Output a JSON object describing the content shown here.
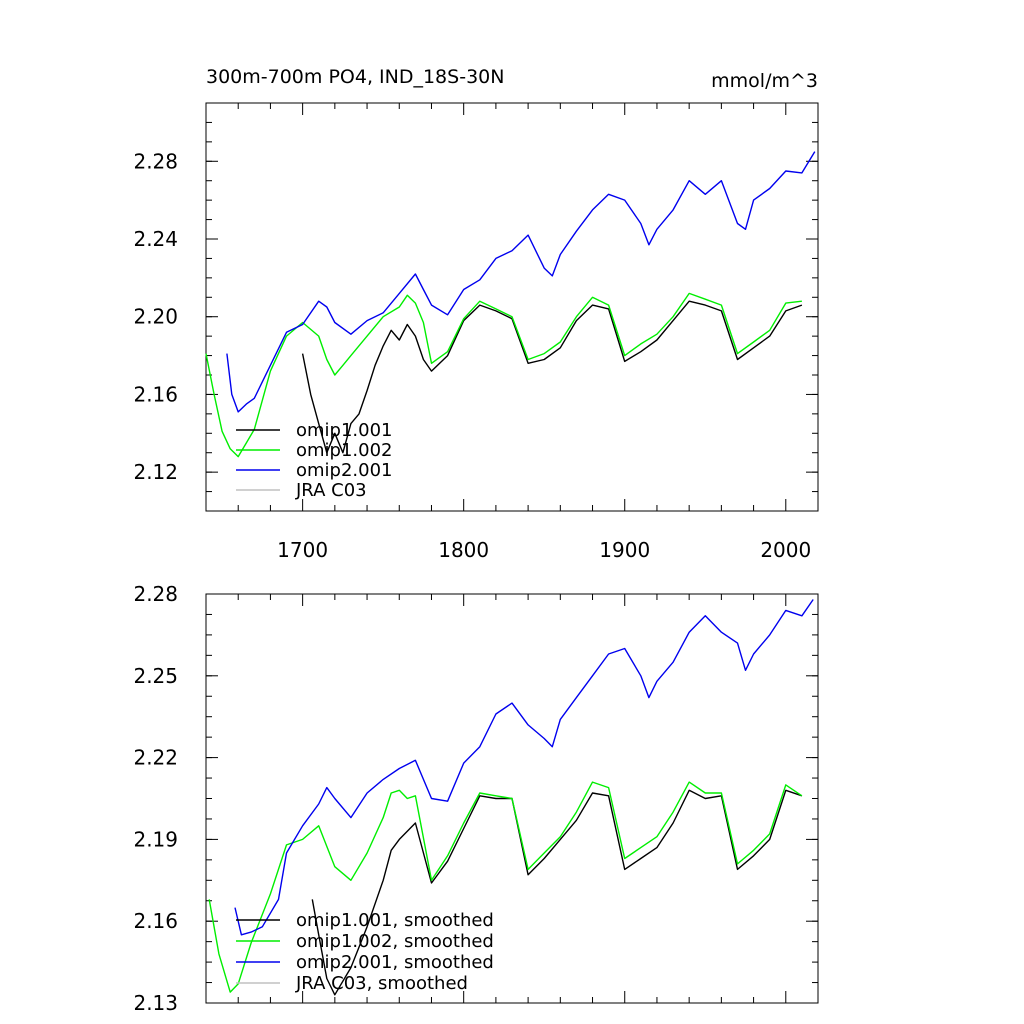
{
  "chart_data": [
    {
      "type": "line",
      "title": "300m-700m PO4, IND_18S-30N",
      "units": "mmol/m^3",
      "xlim": [
        1640,
        2020
      ],
      "ylim": [
        2.1,
        2.31
      ],
      "xticks": [
        1700,
        1800,
        1900,
        2000
      ],
      "xtick_labels": [
        "1700",
        "1800",
        "1900",
        "2000"
      ],
      "yticks": [
        2.12,
        2.16,
        2.2,
        2.24,
        2.28
      ],
      "ytick_labels": [
        "2.12",
        "2.16",
        "2.20",
        "2.24",
        "2.28"
      ],
      "legend_position": "bottom-left",
      "series": [
        {
          "name": "omip1.001",
          "color": "#000000",
          "x": [
            1700,
            1705,
            1710,
            1715,
            1720,
            1725,
            1730,
            1735,
            1740,
            1745,
            1750,
            1755,
            1760,
            1765,
            1770,
            1775,
            1780,
            1790,
            1800,
            1810,
            1820,
            1830,
            1840,
            1850,
            1860,
            1870,
            1880,
            1890,
            1900,
            1910,
            1920,
            1930,
            1940,
            1950,
            1960,
            1970,
            1980,
            1990,
            2000,
            2010
          ],
          "values": [
            2.181,
            2.16,
            2.145,
            2.13,
            2.14,
            2.13,
            2.145,
            2.15,
            2.162,
            2.175,
            2.185,
            2.193,
            2.188,
            2.196,
            2.19,
            2.178,
            2.172,
            2.18,
            2.198,
            2.206,
            2.203,
            2.199,
            2.176,
            2.178,
            2.184,
            2.198,
            2.206,
            2.204,
            2.177,
            2.182,
            2.188,
            2.198,
            2.208,
            2.206,
            2.203,
            2.178,
            2.184,
            2.19,
            2.203,
            2.206
          ]
        },
        {
          "name": "omip1.002",
          "color": "#00ee00",
          "x": [
            1640,
            1645,
            1650,
            1655,
            1660,
            1665,
            1670,
            1680,
            1690,
            1700,
            1710,
            1715,
            1720,
            1725,
            1730,
            1740,
            1750,
            1760,
            1765,
            1770,
            1775,
            1780,
            1790,
            1800,
            1810,
            1820,
            1830,
            1840,
            1850,
            1860,
            1870,
            1880,
            1890,
            1900,
            1910,
            1920,
            1930,
            1940,
            1950,
            1960,
            1970,
            1980,
            1990,
            2000,
            2010
          ],
          "values": [
            2.181,
            2.16,
            2.141,
            2.132,
            2.128,
            2.135,
            2.142,
            2.172,
            2.19,
            2.197,
            2.19,
            2.178,
            2.17,
            2.175,
            2.18,
            2.19,
            2.2,
            2.205,
            2.211,
            2.207,
            2.197,
            2.176,
            2.182,
            2.199,
            2.208,
            2.204,
            2.2,
            2.178,
            2.181,
            2.187,
            2.2,
            2.21,
            2.206,
            2.18,
            2.186,
            2.191,
            2.2,
            2.212,
            2.209,
            2.206,
            2.181,
            2.187,
            2.193,
            2.207,
            2.208
          ]
        },
        {
          "name": "omip2.001",
          "color": "#0000ee",
          "x": [
            1653,
            1656,
            1660,
            1665,
            1670,
            1680,
            1690,
            1700,
            1710,
            1715,
            1720,
            1730,
            1740,
            1750,
            1760,
            1770,
            1775,
            1780,
            1790,
            1800,
            1810,
            1820,
            1830,
            1840,
            1850,
            1855,
            1860,
            1870,
            1880,
            1890,
            1900,
            1910,
            1915,
            1920,
            1930,
            1940,
            1950,
            1960,
            1970,
            1975,
            1980,
            1990,
            2000,
            2010,
            2018
          ],
          "values": [
            2.181,
            2.16,
            2.151,
            2.155,
            2.158,
            2.175,
            2.192,
            2.196,
            2.208,
            2.205,
            2.197,
            2.191,
            2.198,
            2.202,
            2.212,
            2.222,
            2.214,
            2.206,
            2.201,
            2.214,
            2.219,
            2.23,
            2.234,
            2.242,
            2.225,
            2.221,
            2.232,
            2.244,
            2.255,
            2.263,
            2.26,
            2.248,
            2.237,
            2.245,
            2.255,
            2.27,
            2.263,
            2.27,
            2.248,
            2.245,
            2.26,
            2.266,
            2.275,
            2.274,
            2.285
          ]
        },
        {
          "name": "JRA C03",
          "color": "#c0c0c0",
          "x": [],
          "values": []
        }
      ]
    },
    {
      "type": "line",
      "title": "",
      "xlim": [
        1640,
        2020
      ],
      "ylim": [
        2.13,
        2.28
      ],
      "xticks": [
        1700,
        1800,
        1900,
        2000
      ],
      "xtick_labels": [],
      "yticks": [
        2.13,
        2.16,
        2.19,
        2.22,
        2.25,
        2.28
      ],
      "ytick_labels": [
        "2.13",
        "2.16",
        "2.19",
        "2.22",
        "2.25",
        "2.28"
      ],
      "legend_position": "bottom-left",
      "series": [
        {
          "name": "omip1.001, smoothed",
          "color": "#000000",
          "x": [
            1706,
            1710,
            1715,
            1720,
            1730,
            1740,
            1750,
            1755,
            1760,
            1770,
            1780,
            1790,
            1800,
            1810,
            1820,
            1830,
            1840,
            1850,
            1860,
            1870,
            1880,
            1890,
            1900,
            1910,
            1920,
            1930,
            1940,
            1950,
            1960,
            1970,
            1980,
            1990,
            2000,
            2010
          ],
          "values": [
            2.168,
            2.155,
            2.139,
            2.133,
            2.143,
            2.158,
            2.175,
            2.186,
            2.19,
            2.196,
            2.174,
            2.182,
            2.194,
            2.206,
            2.205,
            2.205,
            2.177,
            2.183,
            2.19,
            2.197,
            2.207,
            2.206,
            2.179,
            2.183,
            2.187,
            2.196,
            2.208,
            2.205,
            2.206,
            2.179,
            2.184,
            2.19,
            2.208,
            2.206
          ]
        },
        {
          "name": "omip1.002, smoothed",
          "color": "#00ee00",
          "x": [
            1642,
            1648,
            1655,
            1660,
            1668,
            1680,
            1690,
            1700,
            1710,
            1720,
            1730,
            1740,
            1750,
            1755,
            1760,
            1765,
            1770,
            1780,
            1790,
            1800,
            1810,
            1820,
            1830,
            1840,
            1850,
            1860,
            1870,
            1880,
            1890,
            1900,
            1910,
            1920,
            1930,
            1940,
            1950,
            1960,
            1970,
            1980,
            1990,
            2000,
            2010
          ],
          "values": [
            2.168,
            2.148,
            2.134,
            2.137,
            2.152,
            2.17,
            2.188,
            2.19,
            2.195,
            2.18,
            2.175,
            2.185,
            2.198,
            2.207,
            2.208,
            2.205,
            2.206,
            2.175,
            2.184,
            2.196,
            2.207,
            2.206,
            2.205,
            2.179,
            2.185,
            2.191,
            2.2,
            2.211,
            2.209,
            2.183,
            2.187,
            2.191,
            2.2,
            2.211,
            2.207,
            2.207,
            2.181,
            2.186,
            2.192,
            2.21,
            2.206
          ]
        },
        {
          "name": "omip2.001, smoothed",
          "color": "#0000ee",
          "x": [
            1658,
            1662,
            1668,
            1675,
            1685,
            1690,
            1700,
            1710,
            1715,
            1720,
            1730,
            1740,
            1750,
            1760,
            1770,
            1780,
            1790,
            1800,
            1810,
            1820,
            1830,
            1840,
            1850,
            1855,
            1860,
            1870,
            1880,
            1890,
            1900,
            1910,
            1915,
            1920,
            1930,
            1940,
            1950,
            1960,
            1970,
            1975,
            1980,
            1990,
            2000,
            2010,
            2017
          ],
          "values": [
            2.165,
            2.155,
            2.156,
            2.158,
            2.168,
            2.185,
            2.195,
            2.203,
            2.209,
            2.205,
            2.198,
            2.207,
            2.212,
            2.216,
            2.219,
            2.205,
            2.204,
            2.218,
            2.224,
            2.236,
            2.24,
            2.232,
            2.227,
            2.224,
            2.234,
            2.242,
            2.25,
            2.258,
            2.26,
            2.25,
            2.242,
            2.248,
            2.255,
            2.266,
            2.272,
            2.266,
            2.262,
            2.252,
            2.258,
            2.265,
            2.274,
            2.272,
            2.278
          ]
        },
        {
          "name": "JRA C03, smoothed",
          "color": "#c0c0c0",
          "x": [],
          "values": []
        }
      ]
    }
  ]
}
